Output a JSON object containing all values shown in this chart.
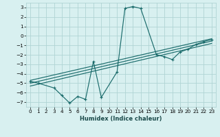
{
  "xlabel": "Humidex (Indice chaleur)",
  "bg_color": "#d8f0f0",
  "grid_color": "#b0d4d4",
  "line_color": "#1a6b6b",
  "xlim": [
    -0.5,
    23.5
  ],
  "ylim": [
    -7.5,
    3.5
  ],
  "yticks": [
    -7,
    -6,
    -5,
    -4,
    -3,
    -2,
    -1,
    0,
    1,
    2,
    3
  ],
  "xticks": [
    0,
    1,
    2,
    3,
    4,
    5,
    6,
    7,
    8,
    9,
    10,
    11,
    12,
    13,
    14,
    15,
    16,
    17,
    18,
    19,
    20,
    21,
    22,
    23
  ],
  "series_main": {
    "x": [
      0,
      1,
      3,
      4,
      5,
      6,
      7,
      8,
      9,
      11,
      12,
      13,
      14,
      16,
      17,
      18,
      19,
      20,
      21,
      22,
      23
    ],
    "y": [
      -4.8,
      -5.0,
      -5.5,
      -6.3,
      -7.1,
      -6.4,
      -6.7,
      -2.7,
      -6.5,
      -3.8,
      2.9,
      3.1,
      2.9,
      -2.0,
      -2.2,
      -2.5,
      -1.7,
      -1.4,
      -0.9,
      -0.6,
      -0.4
    ]
  },
  "series_lines": [
    {
      "x": [
        0,
        23
      ],
      "y": [
        -4.7,
        -0.3
      ]
    },
    {
      "x": [
        0,
        23
      ],
      "y": [
        -5.0,
        -0.55
      ]
    },
    {
      "x": [
        0,
        23
      ],
      "y": [
        -5.3,
        -0.8
      ]
    }
  ]
}
